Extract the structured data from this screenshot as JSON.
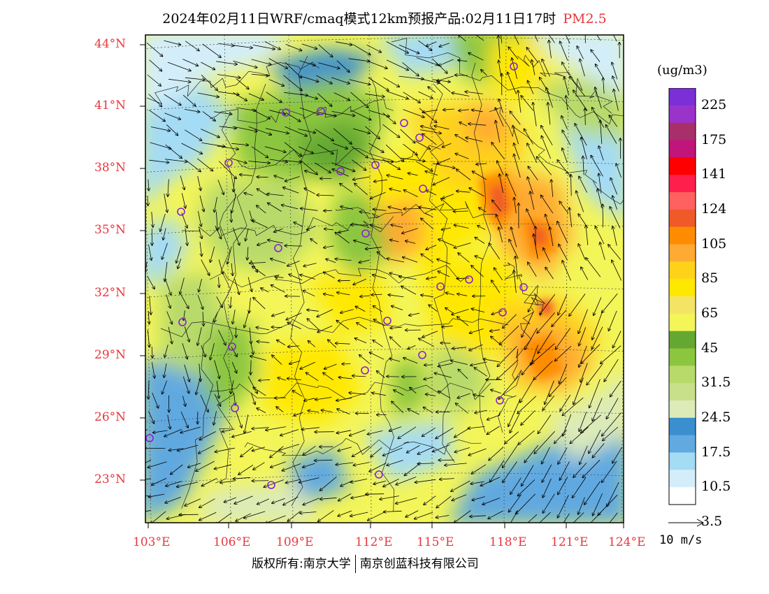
{
  "title": {
    "text": "2024年02月11日WRF/cmaq模式12km预报产品:02月11日17时",
    "variable": "PM2.5"
  },
  "axes": {
    "lat_labels": [
      "44°N",
      "41°N",
      "38°N",
      "35°N",
      "32°N",
      "29°N",
      "26°N",
      "23°N"
    ],
    "lon_labels": [
      "103°E",
      "106°E",
      "109°E",
      "112°E",
      "115°E",
      "118°E",
      "121°E",
      "124°E"
    ]
  },
  "legend": {
    "unit": "(ug/m3)",
    "labels": [
      "225",
      "175",
      "141",
      "124",
      "105",
      "85",
      "65",
      "45",
      "31.5",
      "24.5",
      "17.5",
      "10.5",
      "3.5"
    ],
    "colors": [
      "#7b2fd6",
      "#9a33cc",
      "#a8306a",
      "#c0157a",
      "#ff0000",
      "#ff1f4d",
      "#ff6060",
      "#f05a28",
      "#ff8c00",
      "#ffaa33",
      "#ffd21a",
      "#ffe800",
      "#f3e466",
      "#f3f558",
      "#64a832",
      "#8cc63f",
      "#b8da6b",
      "#c8e08a",
      "#dcebb8",
      "#3b8fcf",
      "#61a9e0",
      "#a4dbf5",
      "#d3eefa",
      "#ffffff"
    ]
  },
  "wind_reference": {
    "label": "10 m/s"
  },
  "footer": {
    "left": "版权所有:南京大学",
    "right": "南京创蓝科技有限公司"
  },
  "map_colors": {
    "clean": "#d3eefa",
    "light_blue": "#a4dbf5",
    "blue": "#61a9e0",
    "dark_blue": "#3b8fcf",
    "pale_green": "#dcebb8",
    "light_green": "#b8da6b",
    "green": "#8cc63f",
    "dark_green": "#64a832",
    "yellow_light": "#f3f558",
    "yellow": "#ffe800",
    "gold": "#ffd21a",
    "orange_light": "#ffaa33",
    "orange": "#ff8c00",
    "red_orange": "#f05a28"
  }
}
